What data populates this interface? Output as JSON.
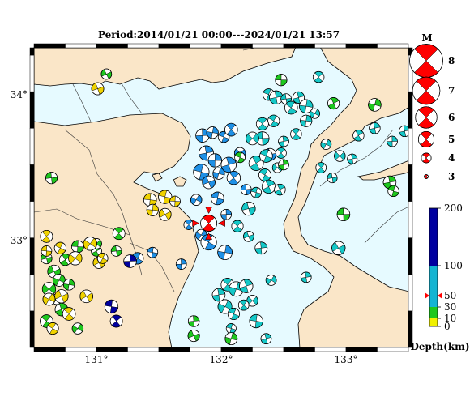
{
  "title": "Period:2014/01/21 00:00---2024/01/21 13:57",
  "map": {
    "lon_range": [
      130.5,
      133.5
    ],
    "lat_range": [
      32.27,
      34.32
    ],
    "lon_ticks": [
      {
        "value": 131,
        "label": "131°"
      },
      {
        "value": 132,
        "label": "132°"
      },
      {
        "value": 133,
        "label": "133°"
      }
    ],
    "lat_ticks": [
      {
        "value": 34,
        "label": "34°"
      },
      {
        "value": 33,
        "label": "33°"
      }
    ],
    "colors": {
      "sea": "#e6faff",
      "land": "#fae6c8",
      "coast": "#000000",
      "frame_dark": "#000000",
      "frame_light": "#ffffff"
    }
  },
  "magnitude_legend": {
    "title": "M",
    "entries": [
      {
        "label": "8",
        "mag": 8
      },
      {
        "label": "7",
        "mag": 7
      },
      {
        "label": "6",
        "mag": 6
      },
      {
        "label": "5",
        "mag": 5
      },
      {
        "label": "4",
        "mag": 4
      },
      {
        "label": "3",
        "mag": 3
      }
    ],
    "color": "#ff0000"
  },
  "depth_scale": {
    "title": "Depth(km)",
    "ticks": [
      {
        "value": 200,
        "label": "200"
      },
      {
        "value": 100,
        "label": "100"
      },
      {
        "value": 50,
        "label": "50"
      },
      {
        "value": 30,
        "label": "30"
      },
      {
        "value": 10,
        "label": "10"
      },
      {
        "value": 0,
        "label": "0"
      }
    ],
    "bands": [
      {
        "from": 0,
        "to": 10,
        "color": "#f0f000"
      },
      {
        "from": 10,
        "to": 30,
        "color": "#1ec81e"
      },
      {
        "from": 30,
        "to": 100,
        "color": "#14b4d2"
      },
      {
        "from": 100,
        "to": 200,
        "color": "#0000a0"
      }
    ],
    "marker_depth": 50
  },
  "chart_data": {
    "type": "scatter",
    "title": "Period:2014/01/21 00:00---2024/01/21 13:57",
    "xlabel": "",
    "ylabel": "",
    "xlim": [
      130.5,
      133.5
    ],
    "ylim": [
      32.27,
      34.32
    ],
    "main_shock": {
      "lon": 131.9,
      "lat": 33.12,
      "depth": 50,
      "mag": 5.1
    },
    "series": [
      {
        "name": "blue",
        "color": "#1e90e6",
        "points": [
          [
            131.85,
            33.72,
            4.6
          ],
          [
            131.93,
            33.74,
            4.3
          ],
          [
            132.02,
            33.71,
            4.2
          ],
          [
            132.08,
            33.76,
            4.5
          ],
          [
            131.88,
            33.6,
            4.8
          ],
          [
            131.95,
            33.55,
            4.6
          ],
          [
            131.84,
            33.47,
            5.0
          ],
          [
            131.9,
            33.4,
            4.5
          ],
          [
            131.98,
            33.46,
            4.3
          ],
          [
            132.06,
            33.52,
            4.9
          ],
          [
            132.1,
            33.43,
            4.6
          ],
          [
            132.15,
            33.6,
            4.2
          ],
          [
            131.8,
            33.28,
            4.2
          ],
          [
            131.97,
            33.29,
            4.5
          ],
          [
            132.04,
            33.18,
            4.1
          ],
          [
            131.74,
            33.11,
            4.0
          ],
          [
            131.84,
            33.04,
            4.2
          ],
          [
            131.9,
            32.99,
            5.0
          ],
          [
            132.03,
            32.92,
            4.8
          ],
          [
            131.68,
            32.84,
            4.1
          ],
          [
            131.33,
            32.88,
            4.3
          ],
          [
            131.45,
            32.92,
            4.1
          ],
          [
            132.39,
            33.59,
            4.4
          ],
          [
            132.2,
            33.35,
            4.1
          ]
        ]
      },
      {
        "name": "cyan",
        "color": "#14c8c8",
        "points": [
          [
            132.38,
            34.0,
            4.3
          ],
          [
            132.44,
            33.98,
            4.6
          ],
          [
            132.52,
            33.97,
            4.1
          ],
          [
            132.56,
            33.91,
            4.5
          ],
          [
            132.62,
            33.98,
            4.3
          ],
          [
            132.68,
            33.92,
            4.6
          ],
          [
            132.75,
            33.87,
            4.0
          ],
          [
            132.78,
            34.12,
            4.2
          ],
          [
            132.42,
            33.82,
            4.3
          ],
          [
            132.33,
            33.7,
            4.6
          ],
          [
            132.5,
            33.68,
            4.1
          ],
          [
            132.6,
            33.73,
            4.2
          ],
          [
            132.68,
            33.82,
            4.3
          ],
          [
            132.28,
            33.53,
            4.8
          ],
          [
            132.35,
            33.45,
            4.4
          ],
          [
            132.45,
            33.5,
            4.0
          ],
          [
            132.38,
            33.37,
            4.6
          ],
          [
            132.47,
            33.35,
            4.2
          ],
          [
            132.28,
            33.33,
            4.1
          ],
          [
            132.22,
            33.22,
            4.6
          ],
          [
            132.13,
            33.1,
            4.3
          ],
          [
            132.22,
            33.03,
            4.1
          ],
          [
            132.32,
            32.95,
            4.4
          ],
          [
            132.05,
            32.7,
            4.5
          ],
          [
            132.12,
            32.67,
            4.8
          ],
          [
            132.2,
            32.69,
            4.6
          ],
          [
            132.25,
            32.59,
            4.2
          ],
          [
            132.03,
            32.55,
            4.7
          ],
          [
            132.1,
            32.5,
            4.3
          ],
          [
            132.18,
            32.56,
            4.1
          ],
          [
            131.98,
            32.63,
            4.5
          ],
          [
            132.08,
            32.4,
            4.0
          ],
          [
            132.28,
            32.45,
            4.6
          ],
          [
            132.36,
            32.33,
            4.1
          ],
          [
            132.4,
            32.73,
            4.1
          ],
          [
            132.84,
            33.66,
            4.1
          ],
          [
            132.89,
            33.43,
            4.0
          ],
          [
            133.1,
            33.72,
            4.2
          ],
          [
            133.23,
            33.77,
            4.2
          ],
          [
            133.37,
            33.68,
            4.1
          ],
          [
            133.47,
            33.75,
            4.2
          ],
          [
            132.94,
            32.95,
            4.6
          ],
          [
            132.68,
            32.75,
            4.1
          ],
          [
            133.05,
            33.56,
            4.0
          ],
          [
            132.8,
            33.5,
            4.1
          ],
          [
            132.33,
            33.8,
            4.4
          ],
          [
            132.25,
            33.7,
            4.5
          ],
          [
            132.36,
            33.58,
            4.5
          ],
          [
            132.48,
            33.6,
            4.1
          ],
          [
            132.95,
            33.58,
            4.2
          ]
        ]
      },
      {
        "name": "green",
        "color": "#1ec81e",
        "points": [
          [
            131.08,
            34.14,
            4.1
          ],
          [
            130.64,
            33.43,
            4.3
          ],
          [
            130.6,
            32.88,
            4.2
          ],
          [
            130.66,
            32.79,
            4.5
          ],
          [
            130.62,
            32.67,
            4.6
          ],
          [
            130.7,
            32.73,
            4.4
          ],
          [
            130.78,
            32.7,
            4.2
          ],
          [
            130.85,
            32.96,
            4.4
          ],
          [
            130.75,
            32.87,
            4.3
          ],
          [
            131.0,
            32.93,
            4.1
          ],
          [
            130.6,
            32.45,
            4.5
          ],
          [
            130.72,
            32.53,
            4.5
          ],
          [
            130.85,
            32.4,
            4.2
          ],
          [
            131.0,
            32.98,
            4.1
          ],
          [
            131.18,
            33.05,
            4.4
          ],
          [
            131.16,
            32.93,
            4.1
          ],
          [
            132.48,
            34.1,
            4.3
          ],
          [
            132.9,
            33.94,
            4.3
          ],
          [
            133.23,
            33.93,
            4.5
          ],
          [
            133.35,
            33.4,
            4.5
          ],
          [
            133.38,
            33.34,
            4.2
          ],
          [
            132.98,
            33.18,
            4.5
          ],
          [
            132.5,
            33.52,
            4.1
          ],
          [
            131.78,
            32.35,
            4.3
          ],
          [
            132.08,
            32.33,
            4.4
          ],
          [
            131.78,
            32.45,
            4.2
          ],
          [
            132.15,
            33.57,
            4.1
          ],
          [
            130.68,
            32.6,
            4.1
          ]
        ]
      },
      {
        "name": "yellow",
        "color": "#f0d200",
        "points": [
          [
            131.01,
            34.04,
            4.4
          ],
          [
            130.6,
            33.03,
            4.4
          ],
          [
            130.6,
            32.93,
            4.1
          ],
          [
            130.71,
            32.95,
            4.3
          ],
          [
            130.83,
            32.88,
            4.6
          ],
          [
            130.95,
            32.98,
            4.6
          ],
          [
            130.62,
            32.6,
            4.4
          ],
          [
            130.72,
            32.62,
            4.6
          ],
          [
            130.78,
            32.5,
            4.5
          ],
          [
            130.92,
            32.62,
            4.5
          ],
          [
            130.65,
            32.4,
            4.3
          ],
          [
            131.43,
            33.28,
            4.5
          ],
          [
            131.55,
            33.3,
            4.6
          ],
          [
            131.63,
            33.27,
            4.1
          ],
          [
            131.45,
            33.21,
            4.3
          ],
          [
            131.55,
            33.18,
            4.4
          ],
          [
            131.02,
            32.85,
            4.3
          ],
          [
            131.05,
            32.88,
            4.1
          ]
        ]
      },
      {
        "name": "navy",
        "color": "#0000a0",
        "points": [
          [
            131.27,
            32.86,
            4.5
          ],
          [
            131.12,
            32.55,
            4.6
          ],
          [
            131.16,
            32.45,
            4.4
          ]
        ]
      }
    ]
  }
}
